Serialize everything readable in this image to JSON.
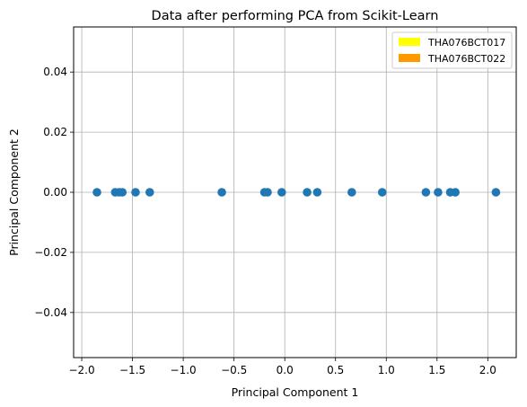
{
  "chart_data": {
    "type": "scatter",
    "title": "Data after performing PCA from Scikit-Learn",
    "xlabel": "Principal Component 1",
    "ylabel": "Principal Component 2",
    "xlim": [
      -2.08,
      2.28
    ],
    "ylim": [
      -0.055,
      0.055
    ],
    "xticks": [
      -2.0,
      -1.5,
      -1.0,
      -0.5,
      0.0,
      0.5,
      1.0,
      1.5,
      2.0
    ],
    "xtick_labels": [
      "−2.0",
      "−1.5",
      "−1.0",
      "−0.5",
      "0.0",
      "0.5",
      "1.0",
      "1.5",
      "2.0"
    ],
    "yticks": [
      0.04,
      0.02,
      0.0,
      -0.02,
      -0.04
    ],
    "ytick_labels": [
      "0.04",
      "0.02",
      "0.00",
      "−0.02",
      "−0.04"
    ],
    "grid": true,
    "legend_position": "upper right",
    "marker_color": "#1f77b4",
    "series": [
      {
        "x": [
          -1.85,
          -1.67,
          -1.63,
          -1.6,
          -1.47,
          -1.33,
          -0.62,
          -0.2,
          -0.17,
          -0.03,
          0.22,
          0.32,
          0.66,
          0.96,
          1.39,
          1.51,
          1.63,
          1.68,
          2.08
        ],
        "y": [
          0,
          0,
          0,
          0,
          0,
          0,
          0,
          0,
          0,
          0,
          0,
          0,
          0,
          0,
          0,
          0,
          0,
          0,
          0
        ]
      }
    ],
    "legend": [
      {
        "label": "THA076BCT017",
        "color": "#ffff00"
      },
      {
        "label": "THA076BCT022",
        "color": "#ff9900"
      }
    ]
  }
}
